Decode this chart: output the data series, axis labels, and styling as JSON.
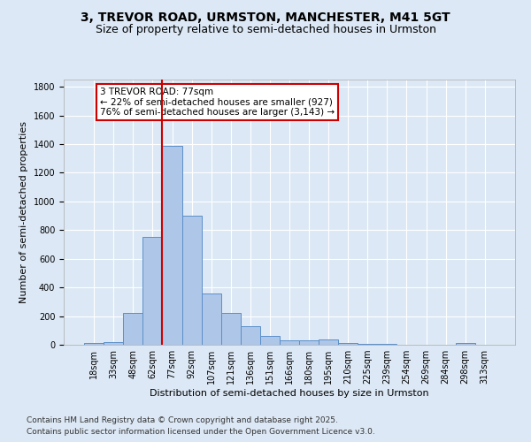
{
  "title1": "3, TREVOR ROAD, URMSTON, MANCHESTER, M41 5GT",
  "title2": "Size of property relative to semi-detached houses in Urmston",
  "xlabel": "Distribution of semi-detached houses by size in Urmston",
  "ylabel": "Number of semi-detached properties",
  "categories": [
    "18sqm",
    "33sqm",
    "48sqm",
    "62sqm",
    "77sqm",
    "92sqm",
    "107sqm",
    "121sqm",
    "136sqm",
    "151sqm",
    "166sqm",
    "180sqm",
    "195sqm",
    "210sqm",
    "225sqm",
    "239sqm",
    "254sqm",
    "269sqm",
    "284sqm",
    "298sqm",
    "313sqm"
  ],
  "values": [
    10,
    20,
    220,
    750,
    1390,
    900,
    360,
    220,
    130,
    60,
    30,
    30,
    35,
    10,
    5,
    5,
    0,
    0,
    0,
    10,
    0
  ],
  "bar_color": "#aec6e8",
  "bar_edge_color": "#5b8fc9",
  "background_color": "#dce8f5",
  "grid_color": "#ffffff",
  "vline_color": "#cc0000",
  "vline_index": 3.5,
  "annotation_text": "3 TREVOR ROAD: 77sqm\n← 22% of semi-detached houses are smaller (927)\n76% of semi-detached houses are larger (3,143) →",
  "annotation_box_color": "#ffffff",
  "annotation_box_edge": "#cc0000",
  "footer1": "Contains HM Land Registry data © Crown copyright and database right 2025.",
  "footer2": "Contains public sector information licensed under the Open Government Licence v3.0.",
  "ylim": [
    0,
    1850
  ],
  "yticks": [
    0,
    200,
    400,
    600,
    800,
    1000,
    1200,
    1400,
    1600,
    1800
  ],
  "title1_fontsize": 10,
  "title2_fontsize": 9,
  "ylabel_fontsize": 8,
  "xlabel_fontsize": 8,
  "tick_fontsize": 7,
  "footer_fontsize": 6.5
}
